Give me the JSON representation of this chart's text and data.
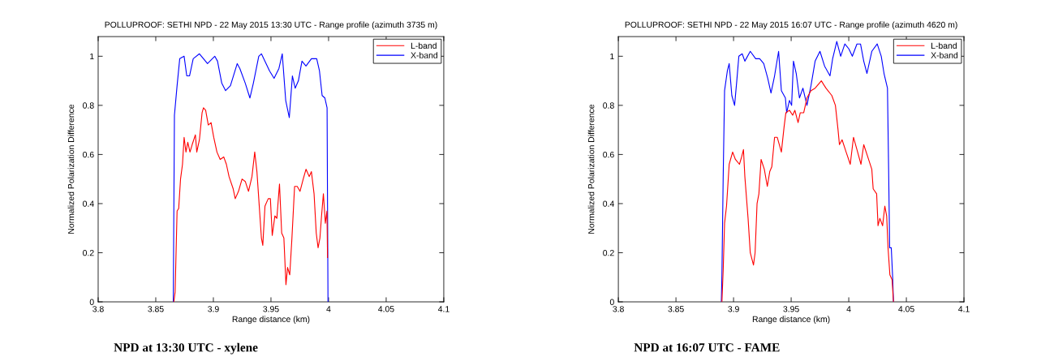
{
  "chart_data": [
    {
      "type": "line",
      "title": "POLLUPROOF: SETHI NPD - 22 May 2015 13:30 UTC - Range profile (azimuth 3735 m)",
      "xlabel": "Range distance (km)",
      "ylabel": "Normalized Polarization Difference",
      "xlim": [
        3.8,
        4.1
      ],
      "xticks": [
        3.8,
        3.85,
        3.9,
        3.95,
        4,
        4.05,
        4.1
      ],
      "ylim": [
        0,
        1.08
      ],
      "yticks": [
        0,
        0.2,
        0.4,
        0.6,
        0.8,
        1
      ],
      "grid": false,
      "legend": "top right",
      "marker": "none",
      "line_style": "solid",
      "annotations": [
        "NPD at 13:30 UTC - xylene"
      ],
      "series": [
        {
          "name": "L-band",
          "color": "#ff0000",
          "x": [
            3.8657,
            3.8668,
            3.8685,
            3.8699,
            3.8715,
            3.8732,
            3.8746,
            3.8762,
            3.8778,
            3.8797,
            3.8816,
            3.8844,
            3.8856,
            3.8879,
            3.8902,
            3.8914,
            3.8933,
            3.8956,
            3.898,
            3.9003,
            3.9031,
            3.9059,
            3.909,
            3.9113,
            3.9136,
            3.9172,
            3.919,
            3.9218,
            3.9249,
            3.9277,
            3.9305,
            3.9335,
            3.9359,
            3.9378,
            3.9394,
            3.9417,
            3.9429,
            3.9448,
            3.9476,
            3.9495,
            3.9511,
            3.9534,
            3.9551,
            3.9574,
            3.9593,
            3.9612,
            3.963,
            3.9644,
            3.9663,
            3.9682,
            3.9705,
            3.9728,
            3.9752,
            3.978,
            3.9804,
            3.9832,
            3.9851,
            3.9874,
            3.9893,
            3.9909,
            3.9925,
            3.9939,
            3.9955,
            3.9972,
            3.9986,
            3.9991
          ],
          "values": [
            0,
            0.04,
            0.37,
            0.38,
            0.5,
            0.56,
            0.67,
            0.61,
            0.65,
            0.61,
            0.64,
            0.68,
            0.61,
            0.66,
            0.77,
            0.79,
            0.78,
            0.72,
            0.73,
            0.67,
            0.61,
            0.58,
            0.59,
            0.56,
            0.51,
            0.46,
            0.42,
            0.45,
            0.5,
            0.49,
            0.45,
            0.51,
            0.61,
            0.53,
            0.42,
            0.26,
            0.23,
            0.39,
            0.42,
            0.42,
            0.27,
            0.35,
            0.34,
            0.48,
            0.28,
            0.26,
            0.07,
            0.14,
            0.11,
            0.26,
            0.47,
            0.47,
            0.45,
            0.5,
            0.54,
            0.51,
            0.53,
            0.44,
            0.28,
            0.22,
            0.26,
            0.35,
            0.44,
            0.32,
            0.37,
            0.18
          ]
        },
        {
          "name": "X-band",
          "color": "#0000ff",
          "x": [
            3.8652,
            3.8657,
            3.8662,
            3.8685,
            3.8708,
            3.8746,
            3.8769,
            3.8793,
            3.8825,
            3.8879,
            3.8949,
            3.9012,
            3.9036,
            3.9073,
            3.9106,
            3.9148,
            3.9207,
            3.923,
            3.9277,
            3.9317,
            3.9347,
            3.9394,
            3.9417,
            3.9488,
            3.9527,
            3.9569,
            3.9598,
            3.9628,
            3.9659,
            3.9686,
            3.971,
            3.9738,
            3.9769,
            3.9804,
            3.9851,
            3.9897,
            3.9921,
            3.9944,
            3.9968,
            3.9987,
            3.9991,
            3.9995
          ],
          "values": [
            0,
            0.38,
            0.76,
            0.88,
            0.99,
            1.0,
            0.92,
            0.92,
            0.99,
            1.01,
            0.97,
            1.0,
            0.98,
            0.89,
            0.86,
            0.88,
            0.97,
            0.95,
            0.89,
            0.83,
            0.89,
            1.0,
            1.01,
            0.94,
            0.91,
            0.95,
            1.01,
            0.82,
            0.75,
            0.92,
            0.87,
            0.9,
            0.98,
            0.96,
            0.99,
            0.99,
            0.94,
            0.84,
            0.83,
            0.79,
            0.39,
            0
          ]
        }
      ]
    },
    {
      "type": "line",
      "title": "POLLUPROOF: SETHI NPD - 22 May 2015 16:07 UTC - Range profile (azimuth 4620 m)",
      "xlabel": "Range distance (km)",
      "ylabel": "Normalized Polarization Difference",
      "xlim": [
        3.8,
        4.1
      ],
      "xticks": [
        3.8,
        3.85,
        3.9,
        3.95,
        4,
        4.05,
        4.1
      ],
      "ylim": [
        0,
        1.08
      ],
      "yticks": [
        0,
        0.2,
        0.4,
        0.6,
        0.8,
        1
      ],
      "grid": false,
      "legend": "top right",
      "marker": "none",
      "line_style": "solid",
      "annotations": [
        "NPD at 16:07 UTC - FAME"
      ],
      "series": [
        {
          "name": "L-band",
          "color": "#ff0000",
          "x": [
            3.8899,
            3.891,
            3.8922,
            3.8939,
            3.8962,
            3.8992,
            3.9016,
            3.9051,
            3.907,
            3.9086,
            3.9098,
            3.9126,
            3.9145,
            3.9173,
            3.9187,
            3.9204,
            3.922,
            3.9239,
            3.9267,
            3.9293,
            3.9314,
            3.9332,
            3.9356,
            3.9379,
            3.9415,
            3.9438,
            3.9454,
            3.9485,
            3.9513,
            3.9532,
            3.956,
            3.9579,
            3.9609,
            3.9637,
            3.9672,
            3.9708,
            3.9762,
            3.9802,
            3.9853,
            3.9884,
            3.9907,
            3.9919,
            3.9942,
            3.9977,
            4.0013,
            4.0041,
            4.0071,
            4.0106,
            4.013,
            4.0165,
            4.02,
            4.0212,
            4.0242,
            4.0254,
            4.027,
            4.0294,
            4.0313,
            4.0329,
            4.0341,
            4.0357,
            4.0376,
            4.0388
          ],
          "values": [
            0,
            0.13,
            0.32,
            0.39,
            0.56,
            0.61,
            0.58,
            0.56,
            0.59,
            0.62,
            0.51,
            0.34,
            0.2,
            0.15,
            0.2,
            0.4,
            0.44,
            0.58,
            0.54,
            0.47,
            0.53,
            0.55,
            0.67,
            0.67,
            0.61,
            0.71,
            0.77,
            0.78,
            0.76,
            0.78,
            0.73,
            0.77,
            0.77,
            0.83,
            0.86,
            0.87,
            0.9,
            0.87,
            0.84,
            0.8,
            0.7,
            0.64,
            0.66,
            0.61,
            0.56,
            0.67,
            0.62,
            0.56,
            0.64,
            0.59,
            0.54,
            0.46,
            0.44,
            0.31,
            0.34,
            0.31,
            0.39,
            0.35,
            0.22,
            0.11,
            0.09,
            0
          ]
        },
        {
          "name": "X-band",
          "color": "#0000ff",
          "x": [
            3.8894,
            3.8899,
            3.891,
            3.8922,
            3.8946,
            3.8962,
            3.8985,
            3.9009,
            3.9028,
            3.9046,
            3.9075,
            3.9098,
            3.9145,
            3.9192,
            3.9227,
            3.9262,
            3.9297,
            3.9325,
            3.9356,
            3.9391,
            3.9415,
            3.945,
            3.9461,
            3.9485,
            3.9504,
            3.952,
            3.9544,
            3.9572,
            3.9602,
            3.9637,
            3.9672,
            3.9708,
            3.975,
            3.979,
            3.9837,
            3.986,
            3.9896,
            3.993,
            3.9966,
            4.0001,
            4.0031,
            4.0071,
            4.0102,
            4.013,
            4.0158,
            4.02,
            4.0247,
            4.0282,
            4.0306,
            4.0336,
            4.0346,
            4.0355,
            4.0369,
            4.0381,
            4.0388
          ],
          "values": [
            0,
            0.11,
            0.51,
            0.86,
            0.94,
            0.97,
            0.84,
            0.8,
            0.9,
            1.0,
            1.01,
            0.98,
            1.02,
            0.99,
            0.99,
            0.97,
            0.91,
            0.85,
            0.92,
            1.02,
            0.86,
            0.83,
            0.77,
            0.82,
            0.8,
            0.98,
            0.93,
            0.83,
            0.87,
            0.8,
            0.88,
            0.98,
            1.02,
            0.96,
            0.92,
            0.99,
            1.06,
            1.0,
            1.05,
            1.03,
            1.0,
            1.05,
            1.05,
            0.98,
            0.93,
            1.02,
            1.05,
            1.0,
            0.93,
            0.87,
            0.54,
            0.22,
            0.22,
            0.1,
            0
          ]
        }
      ]
    }
  ]
}
